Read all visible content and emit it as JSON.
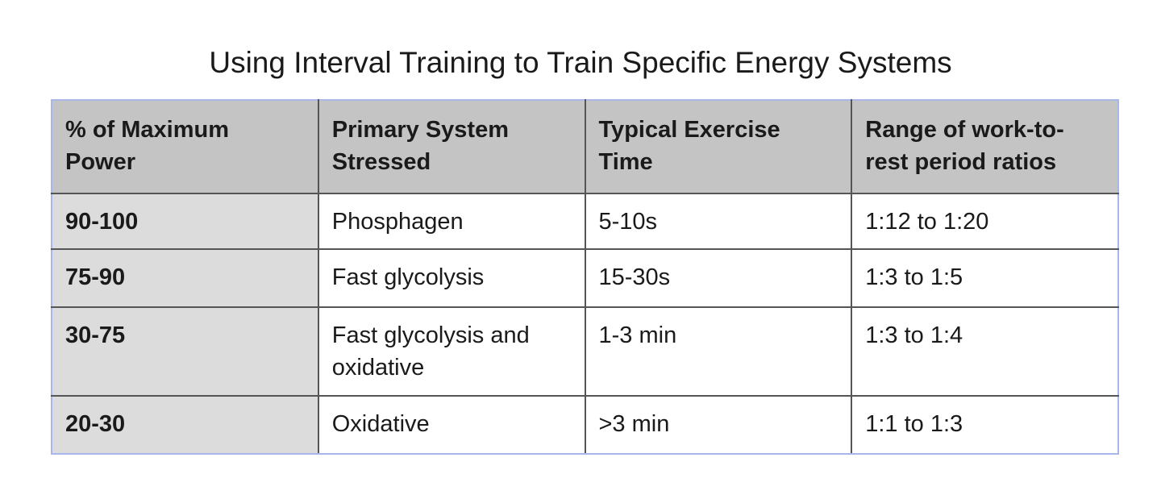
{
  "title": "Using Interval Training to Train Specific Energy Systems",
  "table": {
    "header": [
      [
        "% of Maximum",
        "Power"
      ],
      [
        "Primary System",
        "Stressed"
      ],
      [
        "Typical Exercise",
        "Time"
      ],
      [
        "Range of work-to-",
        "rest period ratios"
      ]
    ],
    "rows": [
      [
        [
          "90-100"
        ],
        [
          "Phosphagen"
        ],
        [
          "5-10s"
        ],
        [
          "1:12 to 1:20"
        ]
      ],
      [
        [
          "75-90"
        ],
        [
          "Fast glycolysis"
        ],
        [
          "15-30s"
        ],
        [
          "1:3 to 1:5"
        ]
      ],
      [
        [
          "30-75"
        ],
        [
          "Fast glycolysis and",
          "oxidative"
        ],
        [
          "1-3 min"
        ],
        [
          "1:3 to 1:4"
        ]
      ],
      [
        [
          "20-30"
        ],
        [
          "Oxidative"
        ],
        [
          ">3 min"
        ],
        [
          "1:1 to 1:3"
        ]
      ]
    ]
  }
}
